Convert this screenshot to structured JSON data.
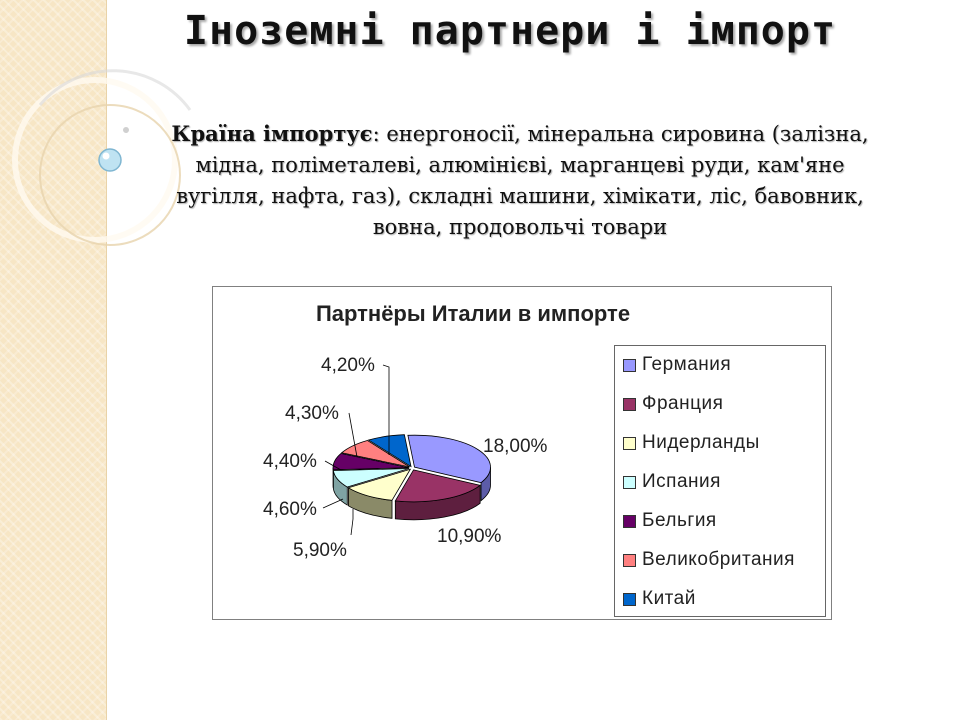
{
  "slide": {
    "title": "Іноземні партнери і імпорт",
    "desc_lead": "Країна імпортує",
    "desc_text": ": енергоносії, мінеральна сировина (залізна, мідна, поліметалеві, алюмінієві, марганцеві руди, кам'яне вугілля, нафта, газ), складні машини, хімікати, ліс, бавовник, вовна, продовольчі товари"
  },
  "chart_data": {
    "type": "pie",
    "title": "Партнёры Италии в импорте",
    "categories": [
      "Германия",
      "Франция",
      "Нидерланды",
      "Испания",
      "Бельгия",
      "Великобритания",
      "Китай"
    ],
    "values": [
      18.0,
      10.9,
      5.9,
      4.6,
      4.4,
      4.3,
      4.2
    ],
    "labels": [
      "18,00%",
      "10,90%",
      "5,90%",
      "4,60%",
      "4,40%",
      "4,30%",
      "4,20%"
    ],
    "colors": [
      "#9999ff",
      "#993366",
      "#ffffcc",
      "#ccffff",
      "#660066",
      "#ff8080",
      "#0066cc"
    ],
    "side_colors": [
      "#5c5ca8",
      "#5e1f3f",
      "#8a8a68",
      "#7fa3a3",
      "#3c003c",
      "#a35252",
      "#003d7a"
    ],
    "legend_position": "right",
    "style": "3d-exploded"
  }
}
